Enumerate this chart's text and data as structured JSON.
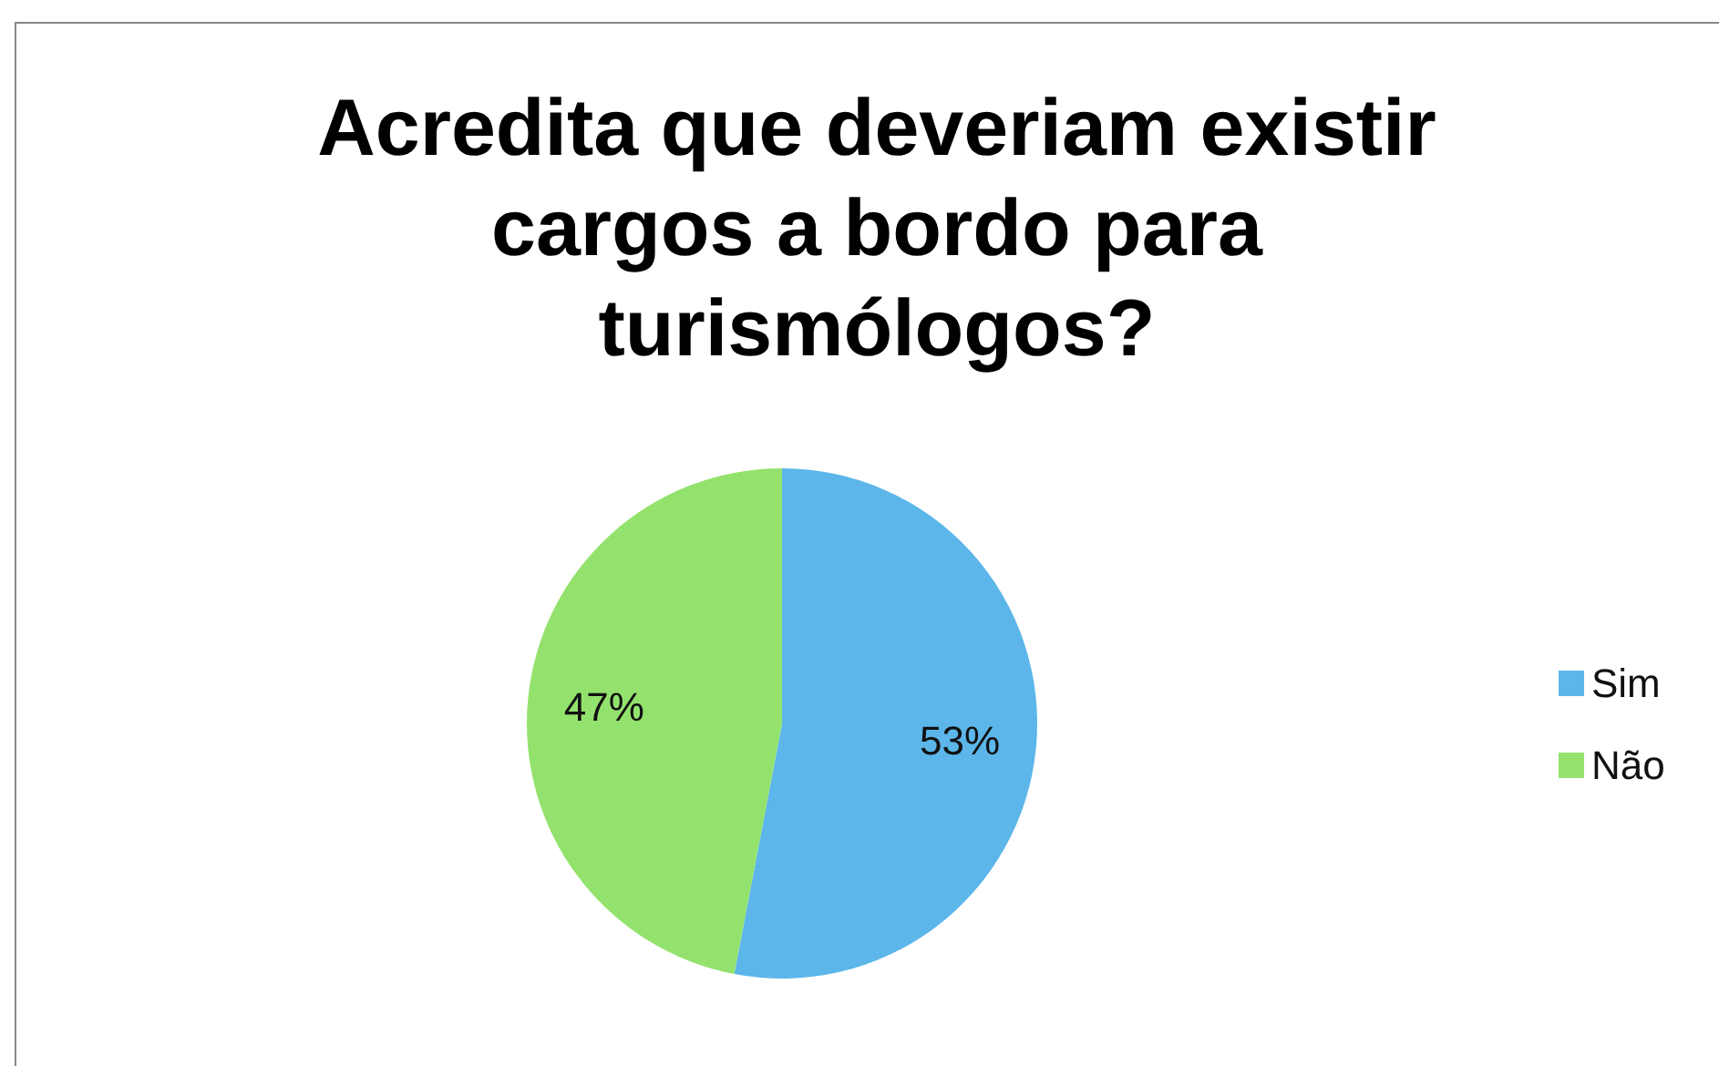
{
  "chart_data": {
    "type": "pie",
    "title": "Acredita que deveriam existir cargos a bordo para turismólogos?",
    "categories": [
      "Sim",
      "Não"
    ],
    "values": [
      53,
      47
    ],
    "colors": [
      "#5cb6ea",
      "#94e26e"
    ],
    "value_labels": [
      "53%",
      "47%"
    ],
    "legend": "right"
  }
}
